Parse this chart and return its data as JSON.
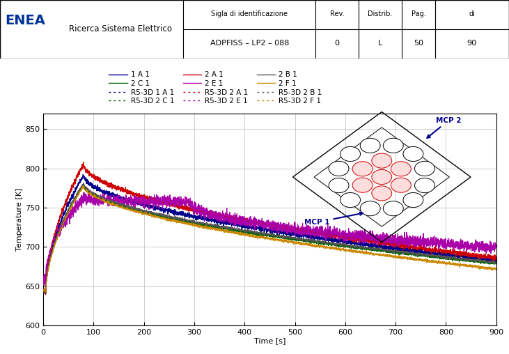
{
  "doc_id": "ADPFISS – LP2 – 088",
  "rev": "0",
  "distrib": "L",
  "pag": "50",
  "di": "90",
  "org_sub": "Ricerca Sistema Elettrico",
  "xlabel": "Time [s]",
  "ylabel": "Temperature [K]",
  "xlim": [
    0,
    900
  ],
  "ylim": [
    600,
    870
  ],
  "yticks": [
    600,
    650,
    700,
    750,
    800,
    850
  ],
  "xticks": [
    0,
    100,
    200,
    300,
    400,
    500,
    600,
    700,
    800,
    900
  ],
  "colors": {
    "1A1": "#00008B",
    "2C1": "#006400",
    "2A1": "#cc0000",
    "2E1": "#aa00aa",
    "2B1": "#555555",
    "2F1": "#cc8800"
  },
  "bg_color": "#ffffff",
  "grid_color": "#bbbbbb",
  "mcp1_label": "MCP 1",
  "mcp2_label": "MCP 2"
}
